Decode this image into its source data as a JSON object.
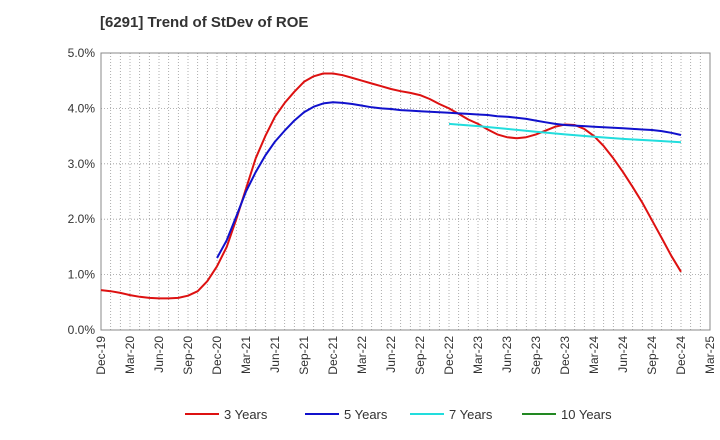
{
  "title": "[6291]  Trend of StDev of ROE",
  "chart_data": {
    "type": "line",
    "title": "[6291]  Trend of StDev of ROE",
    "xlabel": "",
    "ylabel": "",
    "ylim": [
      0,
      5
    ],
    "y_ticks": [
      0,
      1,
      2,
      3,
      4,
      5
    ],
    "y_tick_labels": [
      "0.0%",
      "1.0%",
      "2.0%",
      "3.0%",
      "4.0%",
      "5.0%"
    ],
    "x_tick_labels": [
      "Dec-19",
      "Mar-20",
      "Jun-20",
      "Sep-20",
      "Dec-20",
      "Mar-21",
      "Jun-21",
      "Sep-21",
      "Dec-21",
      "Mar-22",
      "Jun-22",
      "Sep-22",
      "Dec-22",
      "Mar-23",
      "Jun-23",
      "Sep-23",
      "Dec-23",
      "Mar-24",
      "Jun-24",
      "Sep-24",
      "Dec-24",
      "Mar-25"
    ],
    "grid": true,
    "legend_position": "bottom",
    "series": [
      {
        "name": "3 Years",
        "color": "#dd1111",
        "points": [
          [
            "Dec-19",
            0.72
          ],
          [
            "Jan-20",
            0.7
          ],
          [
            "Feb-20",
            0.67
          ],
          [
            "Mar-20",
            0.63
          ],
          [
            "Apr-20",
            0.6
          ],
          [
            "May-20",
            0.58
          ],
          [
            "Jun-20",
            0.57
          ],
          [
            "Jul-20",
            0.57
          ],
          [
            "Aug-20",
            0.58
          ],
          [
            "Sep-20",
            0.62
          ],
          [
            "Oct-20",
            0.7
          ],
          [
            "Nov-20",
            0.88
          ],
          [
            "Dec-20",
            1.15
          ],
          [
            "Jan-21",
            1.5
          ],
          [
            "Feb-21",
            2.0
          ],
          [
            "Mar-21",
            2.55
          ],
          [
            "Apr-21",
            3.1
          ],
          [
            "May-21",
            3.5
          ],
          [
            "Jun-21",
            3.85
          ],
          [
            "Jul-21",
            4.1
          ],
          [
            "Aug-21",
            4.3
          ],
          [
            "Sep-21",
            4.48
          ],
          [
            "Oct-21",
            4.58
          ],
          [
            "Nov-21",
            4.63
          ],
          [
            "Dec-21",
            4.63
          ],
          [
            "Jan-22",
            4.6
          ],
          [
            "Feb-22",
            4.55
          ],
          [
            "Mar-22",
            4.5
          ],
          [
            "Apr-22",
            4.45
          ],
          [
            "May-22",
            4.4
          ],
          [
            "Jun-22",
            4.35
          ],
          [
            "Jul-22",
            4.31
          ],
          [
            "Aug-22",
            4.28
          ],
          [
            "Sep-22",
            4.24
          ],
          [
            "Oct-22",
            4.17
          ],
          [
            "Nov-22",
            4.08
          ],
          [
            "Dec-22",
            4.0
          ],
          [
            "Jan-23",
            3.9
          ],
          [
            "Feb-23",
            3.8
          ],
          [
            "Mar-23",
            3.72
          ],
          [
            "Apr-23",
            3.62
          ],
          [
            "May-23",
            3.53
          ],
          [
            "Jun-23",
            3.48
          ],
          [
            "Jul-23",
            3.46
          ],
          [
            "Aug-23",
            3.48
          ],
          [
            "Sep-23",
            3.53
          ],
          [
            "Oct-23",
            3.6
          ],
          [
            "Nov-23",
            3.67
          ],
          [
            "Dec-23",
            3.71
          ],
          [
            "Jan-24",
            3.7
          ],
          [
            "Feb-24",
            3.63
          ],
          [
            "Mar-24",
            3.5
          ],
          [
            "Apr-24",
            3.32
          ],
          [
            "May-24",
            3.1
          ],
          [
            "Jun-24",
            2.85
          ],
          [
            "Jul-24",
            2.58
          ],
          [
            "Aug-24",
            2.3
          ],
          [
            "Sep-24",
            1.98
          ],
          [
            "Oct-24",
            1.66
          ],
          [
            "Nov-24",
            1.34
          ],
          [
            "Dec-24",
            1.05
          ]
        ]
      },
      {
        "name": "5 Years",
        "color": "#1111cc",
        "points": [
          [
            "Dec-20",
            1.3
          ],
          [
            "Jan-21",
            1.62
          ],
          [
            "Feb-21",
            2.05
          ],
          [
            "Mar-21",
            2.5
          ],
          [
            "Apr-21",
            2.85
          ],
          [
            "May-21",
            3.15
          ],
          [
            "Jun-21",
            3.4
          ],
          [
            "Jul-21",
            3.6
          ],
          [
            "Aug-21",
            3.78
          ],
          [
            "Sep-21",
            3.93
          ],
          [
            "Oct-21",
            4.03
          ],
          [
            "Nov-21",
            4.09
          ],
          [
            "Dec-21",
            4.11
          ],
          [
            "Jan-22",
            4.1
          ],
          [
            "Feb-22",
            4.08
          ],
          [
            "Mar-22",
            4.05
          ],
          [
            "Apr-22",
            4.02
          ],
          [
            "May-22",
            4.0
          ],
          [
            "Jun-22",
            3.99
          ],
          [
            "Jul-22",
            3.97
          ],
          [
            "Aug-22",
            3.96
          ],
          [
            "Sep-22",
            3.95
          ],
          [
            "Oct-22",
            3.94
          ],
          [
            "Nov-22",
            3.93
          ],
          [
            "Dec-22",
            3.92
          ],
          [
            "Jan-23",
            3.91
          ],
          [
            "Feb-23",
            3.9
          ],
          [
            "Mar-23",
            3.89
          ],
          [
            "Apr-23",
            3.88
          ],
          [
            "May-23",
            3.86
          ],
          [
            "Jun-23",
            3.85
          ],
          [
            "Jul-23",
            3.83
          ],
          [
            "Aug-23",
            3.81
          ],
          [
            "Sep-23",
            3.78
          ],
          [
            "Oct-23",
            3.75
          ],
          [
            "Nov-23",
            3.72
          ],
          [
            "Dec-23",
            3.7
          ],
          [
            "Jan-24",
            3.69
          ],
          [
            "Feb-24",
            3.68
          ],
          [
            "Mar-24",
            3.67
          ],
          [
            "Apr-24",
            3.66
          ],
          [
            "May-24",
            3.65
          ],
          [
            "Jun-24",
            3.64
          ],
          [
            "Jul-24",
            3.63
          ],
          [
            "Aug-24",
            3.62
          ],
          [
            "Sep-24",
            3.61
          ],
          [
            "Oct-24",
            3.59
          ],
          [
            "Nov-24",
            3.56
          ],
          [
            "Dec-24",
            3.52
          ]
        ]
      },
      {
        "name": "7 Years",
        "color": "#22dddd",
        "points": [
          [
            "Dec-22",
            3.72
          ],
          [
            "Mar-23",
            3.68
          ],
          [
            "Jun-23",
            3.63
          ],
          [
            "Sep-23",
            3.58
          ],
          [
            "Dec-23",
            3.53
          ],
          [
            "Mar-24",
            3.49
          ],
          [
            "Jun-24",
            3.45
          ],
          [
            "Sep-24",
            3.42
          ],
          [
            "Dec-24",
            3.39
          ]
        ]
      },
      {
        "name": "10 Years",
        "color": "#228822",
        "points": []
      }
    ]
  }
}
